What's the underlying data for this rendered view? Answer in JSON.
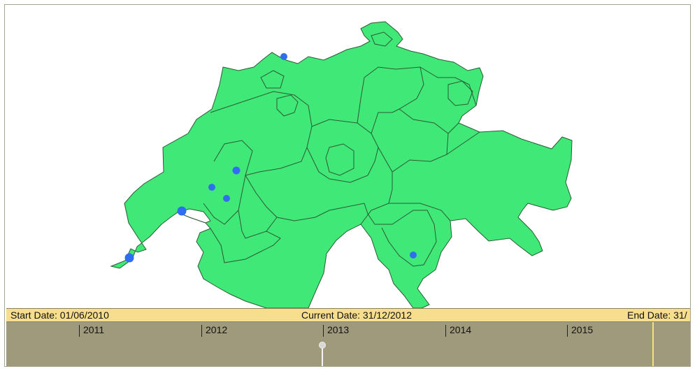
{
  "map": {
    "country": "Switzerland",
    "fill_color": "#40e877",
    "border_color": "#2b5a35",
    "marker_color": "#2f6ef2",
    "markers": [
      {
        "name": "Basel"
      },
      {
        "name": "Neuchatel"
      },
      {
        "name": "Yverdon"
      },
      {
        "name": "Lausanne-north"
      },
      {
        "name": "Lausanne"
      },
      {
        "name": "Geneva"
      },
      {
        "name": "Lugano"
      }
    ]
  },
  "timeline": {
    "start_label": "Start Date: 01/06/2010",
    "current_label": "Current Date: 31/12/2012",
    "end_label": "End Date: 31/",
    "years": [
      "2011",
      "2012",
      "2013",
      "2014",
      "2015"
    ],
    "current_year_fraction": 0.0,
    "bar_color": "#f6de8e",
    "track_color": "#9e9a7b"
  }
}
